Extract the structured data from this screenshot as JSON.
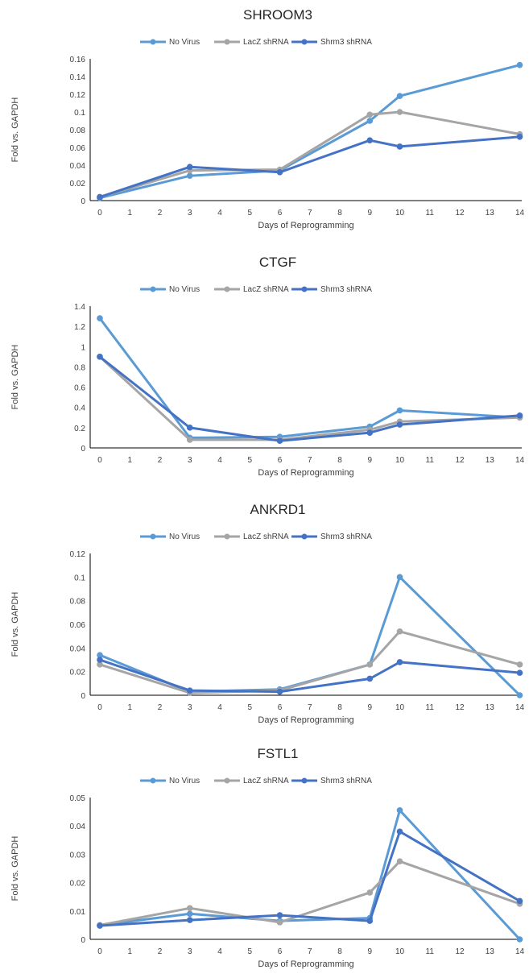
{
  "colors": {
    "no_virus": "#5B9BD5",
    "lacz": "#A5A5A5",
    "shrm3": "#4472C4"
  },
  "chart_data": [
    {
      "type": "line",
      "title": "SHROOM3",
      "xlabel": "Days of Reprogramming",
      "ylabel": "Fold vs. GAPDH",
      "legend_position": "top-center",
      "grid": false,
      "x_ticks": [
        "0",
        "1",
        "2",
        "3",
        "4",
        "5",
        "6",
        "7",
        "8",
        "9",
        "10",
        "11",
        "12",
        "13",
        "14"
      ],
      "y_ticks": [
        "0",
        "0.02",
        "0.04",
        "0.06",
        "0.08",
        "0.1",
        "0.12",
        "0.14",
        "0.16"
      ],
      "ylim": [
        0,
        0.16
      ],
      "x": [
        0,
        3,
        6,
        9,
        10,
        14
      ],
      "series": [
        {
          "name": "No Virus",
          "color": "#5B9BD5",
          "values": [
            0.003,
            0.028,
            0.034,
            0.09,
            0.118,
            0.153
          ]
        },
        {
          "name": "LacZ shRNA",
          "color": "#A5A5A5",
          "values": [
            0.004,
            0.034,
            0.035,
            0.097,
            0.1,
            0.075
          ]
        },
        {
          "name": "Shrm3 shRNA",
          "color": "#4472C4",
          "values": [
            0.004,
            0.038,
            0.032,
            0.068,
            0.061,
            0.072
          ]
        }
      ]
    },
    {
      "type": "line",
      "title": "CTGF",
      "xlabel": "Days of Reprogramming",
      "ylabel": "Fold vs. GAPDH",
      "legend_position": "top-center",
      "grid": false,
      "x_ticks": [
        "0",
        "1",
        "2",
        "3",
        "4",
        "5",
        "6",
        "7",
        "8",
        "9",
        "10",
        "11",
        "12",
        "13",
        "14"
      ],
      "y_ticks": [
        "0",
        "0.2",
        "0.4",
        "0.6",
        "0.8",
        "1",
        "1.2",
        "1.4"
      ],
      "ylim": [
        0,
        1.4
      ],
      "x": [
        0,
        3,
        6,
        9,
        10,
        14
      ],
      "series": [
        {
          "name": "No Virus",
          "color": "#5B9BD5",
          "values": [
            1.28,
            0.1,
            0.11,
            0.21,
            0.37,
            0.3
          ]
        },
        {
          "name": "LacZ shRNA",
          "color": "#A5A5A5",
          "values": [
            0.9,
            0.08,
            0.08,
            0.18,
            0.26,
            0.3
          ]
        },
        {
          "name": "Shrm3 shRNA",
          "color": "#4472C4",
          "values": [
            0.9,
            0.2,
            0.07,
            0.15,
            0.23,
            0.32
          ]
        }
      ]
    },
    {
      "type": "line",
      "title": "ANKRD1",
      "xlabel": "Days of Reprogramming",
      "ylabel": "Fold vs. GAPDH",
      "legend_position": "top-center",
      "grid": false,
      "x_ticks": [
        "0",
        "1",
        "2",
        "3",
        "4",
        "5",
        "6",
        "7",
        "8",
        "9",
        "10",
        "11",
        "12",
        "13",
        "14"
      ],
      "y_ticks": [
        "0",
        "0.02",
        "0.04",
        "0.06",
        "0.08",
        "0.1",
        "0.12"
      ],
      "ylim": [
        0,
        0.12
      ],
      "x": [
        0,
        3,
        6,
        9,
        10,
        14
      ],
      "series": [
        {
          "name": "No Virus",
          "color": "#5B9BD5",
          "values": [
            0.034,
            0.003,
            0.005,
            0.026,
            0.1,
            0.0
          ]
        },
        {
          "name": "LacZ shRNA",
          "color": "#A5A5A5",
          "values": [
            0.026,
            0.002,
            0.004,
            0.026,
            0.054,
            0.026
          ]
        },
        {
          "name": "Shrm3 shRNA",
          "color": "#4472C4",
          "values": [
            0.03,
            0.004,
            0.003,
            0.014,
            0.028,
            0.019
          ]
        }
      ]
    },
    {
      "type": "line",
      "title": "FSTL1",
      "xlabel": "Days of Reprogramming",
      "ylabel": "Fold vs. GAPDH",
      "legend_position": "top-center",
      "grid": false,
      "x_ticks": [
        "0",
        "1",
        "2",
        "3",
        "4",
        "5",
        "6",
        "7",
        "8",
        "9",
        "10",
        "11",
        "12",
        "13",
        "14"
      ],
      "y_ticks": [
        "0",
        "0.01",
        "0.02",
        "0.03",
        "0.04",
        "0.05"
      ],
      "ylim": [
        0,
        0.05
      ],
      "x": [
        0,
        3,
        6,
        9,
        10,
        14
      ],
      "series": [
        {
          "name": "No Virus",
          "color": "#5B9BD5",
          "values": [
            0.005,
            0.009,
            0.0065,
            0.0075,
            0.0455,
            0.0
          ]
        },
        {
          "name": "LacZ shRNA",
          "color": "#A5A5A5",
          "values": [
            0.005,
            0.011,
            0.006,
            0.0165,
            0.0275,
            0.0125
          ]
        },
        {
          "name": "Shrm3 shRNA",
          "color": "#4472C4",
          "values": [
            0.0048,
            0.0068,
            0.0085,
            0.0065,
            0.038,
            0.0135
          ]
        }
      ]
    }
  ]
}
